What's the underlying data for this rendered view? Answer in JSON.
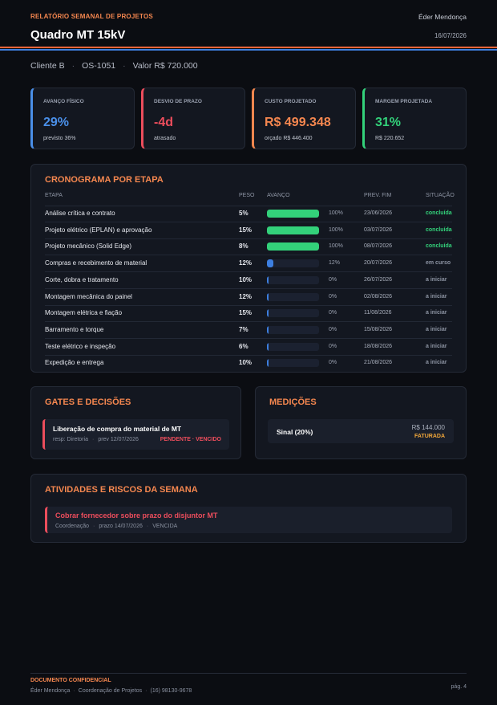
{
  "header": {
    "kicker": "RELATÓRIO SEMANAL DE PROJETOS",
    "title": "Quadro MT 15kV",
    "author": "Éder Mendonça",
    "date": "16/07/2026"
  },
  "meta": [
    "Cliente B",
    "OS-1051",
    "Valor R$ 720.000"
  ],
  "kpis": [
    {
      "label": "AVANÇO FÍSICO",
      "value": "29%",
      "note": "previsto 36%",
      "color": "#4a8fe8"
    },
    {
      "label": "DESVIO DE PRAZO",
      "value": "-4d",
      "note": "atrasado",
      "color": "#ec4d5c"
    },
    {
      "label": "CUSTO PROJETADO",
      "value": "R$ 499.348",
      "note": "orçado R$ 446.400",
      "color": "#f5874f"
    },
    {
      "label": "MARGEM PROJETADA",
      "value": "31%",
      "note": "R$ 220.652",
      "color": "#33d17a"
    }
  ],
  "schedule": {
    "title": "CRONOGRAMA POR ETAPA",
    "columns": [
      "ETAPA",
      "PESO",
      "AVANÇO",
      "PREV. FIM",
      "SITUAÇÃO"
    ],
    "rows": [
      {
        "stage": "Análise crítica e contrato",
        "weight": "5%",
        "progress": 100,
        "progress_label": "100%",
        "due": "23/06/2026",
        "status": "concluída"
      },
      {
        "stage": "Projeto elétrico (EPLAN) e aprovação",
        "weight": "15%",
        "progress": 100,
        "progress_label": "100%",
        "due": "03/07/2026",
        "status": "concluída"
      },
      {
        "stage": "Projeto mecânico (Solid Edge)",
        "weight": "8%",
        "progress": 100,
        "progress_label": "100%",
        "due": "08/07/2026",
        "status": "concluída"
      },
      {
        "stage": "Compras e recebimento de material",
        "weight": "12%",
        "progress": 12,
        "progress_label": "12%",
        "due": "20/07/2026",
        "status": "em curso"
      },
      {
        "stage": "Corte, dobra e tratamento",
        "weight": "10%",
        "progress": 0,
        "progress_label": "0%",
        "due": "26/07/2026",
        "status": "a iniciar"
      },
      {
        "stage": "Montagem mecânica do painel",
        "weight": "12%",
        "progress": 0,
        "progress_label": "0%",
        "due": "02/08/2026",
        "status": "a iniciar"
      },
      {
        "stage": "Montagem elétrica e fiação",
        "weight": "15%",
        "progress": 0,
        "progress_label": "0%",
        "due": "11/08/2026",
        "status": "a iniciar"
      },
      {
        "stage": "Barramento e torque",
        "weight": "7%",
        "progress": 0,
        "progress_label": "0%",
        "due": "15/08/2026",
        "status": "a iniciar"
      },
      {
        "stage": "Teste elétrico e inspeção",
        "weight": "6%",
        "progress": 0,
        "progress_label": "0%",
        "due": "18/08/2026",
        "status": "a iniciar"
      },
      {
        "stage": "Expedição e entrega",
        "weight": "10%",
        "progress": 0,
        "progress_label": "0%",
        "due": "21/08/2026",
        "status": "a iniciar"
      }
    ]
  },
  "gates": {
    "title": "GATES E DECISÕES",
    "items": [
      {
        "title": "Liberação de compra do material de MT",
        "responsible": "resp: Diretoria",
        "due": "prev 12/07/2026",
        "status": "PENDENTE · VENCIDO"
      }
    ]
  },
  "measurements": {
    "title": "MEDIÇÕES",
    "items": [
      {
        "label": "Sinal (20%)",
        "amount": "R$ 144.000",
        "status": "FATURADA"
      }
    ]
  },
  "activities": {
    "title": "ATIVIDADES E RISCOS DA SEMANA",
    "items": [
      {
        "title": "Cobrar fornecedor sobre prazo do disjuntor MT",
        "owner": "Coordenação",
        "due": "prazo 14/07/2026",
        "status": "VENCIDA"
      }
    ]
  },
  "footer": {
    "label": "DOCUMENTO CONFIDENCIAL",
    "contact": [
      "Éder Mendonça",
      "Coordenação de Projetos",
      "(16) 98130-9678"
    ],
    "page": "pág. 4"
  }
}
